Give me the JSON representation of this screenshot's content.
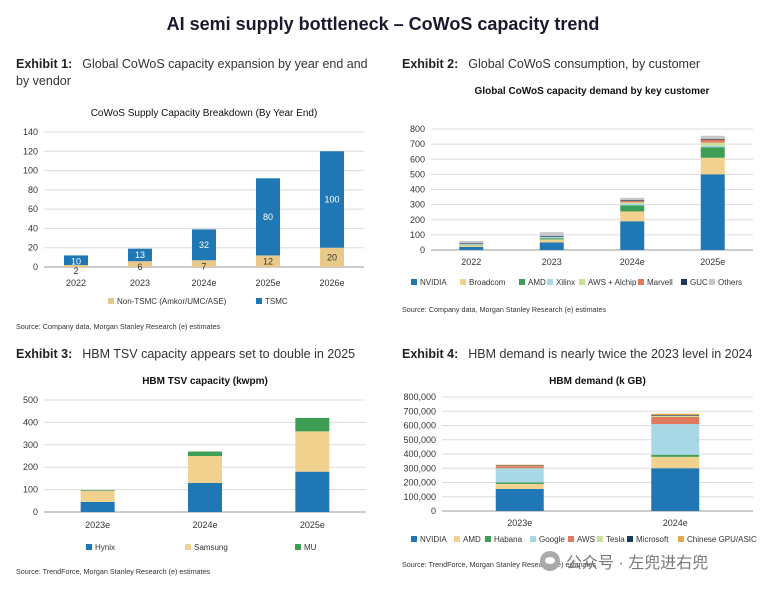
{
  "page": {
    "title": "AI semi supply bottleneck – CoWoS capacity trend"
  },
  "exhibits": [
    {
      "num": "Exhibit 1:",
      "text": "Global CoWoS capacity expansion by year end and by vendor",
      "source": "Source: Company data, Morgan Stanley Research (e) estimates"
    },
    {
      "num": "Exhibit 2:",
      "text": "Global CoWoS consumption, by customer",
      "source": "Source: Company data, Morgan Stanley Research (e) estimates"
    },
    {
      "num": "Exhibit 3:",
      "text": "HBM TSV capacity appears set to double in 2025",
      "source": "Source: TrendForce, Morgan Stanley Research (e) estimates"
    },
    {
      "num": "Exhibit 4:",
      "text": "HBM demand is nearly twice the 2023 level in 2024",
      "source": "Source: TrendForce, Morgan Stanley Research (e) estimates"
    }
  ],
  "watermark": {
    "text": "公众号 · 左兜进右兜"
  },
  "chart_data": [
    {
      "type": "bar",
      "stacked": true,
      "title": "CoWoS Supply Capacity Breakdown (By Year End)",
      "categories": [
        "2022",
        "2023",
        "2024e",
        "2025e",
        "2026e"
      ],
      "series": [
        {
          "name": "Non-TSMC (Amkor/UMC/ASE)",
          "color": "#e8c98a",
          "values": [
            2,
            6,
            7,
            12,
            20
          ]
        },
        {
          "name": "TSMC",
          "color": "#1f77b4",
          "values": [
            10,
            13,
            32,
            80,
            100
          ]
        }
      ],
      "ylim": [
        0,
        140
      ],
      "yticks": [
        "0",
        "20",
        "40",
        "60",
        "80",
        "100",
        "120",
        "140"
      ],
      "data_labels": true
    },
    {
      "type": "bar",
      "stacked": true,
      "title": "Global CoWoS capacity demand by key customer",
      "categories": [
        "2022",
        "2023",
        "2024e",
        "2025e"
      ],
      "series": [
        {
          "name": "NVIDIA",
          "color": "#1f77b4",
          "values": [
            20,
            50,
            190,
            500
          ]
        },
        {
          "name": "Broadcom",
          "color": "#f0d28e",
          "values": [
            12,
            20,
            65,
            110
          ]
        },
        {
          "name": "AMD",
          "color": "#3e9e55",
          "values": [
            3,
            8,
            40,
            70
          ]
        },
        {
          "name": "Xilinx",
          "color": "#a8d8e6",
          "values": [
            5,
            10,
            10,
            10
          ]
        },
        {
          "name": "AWS + Alchip",
          "color": "#c8df9a",
          "values": [
            0,
            0,
            10,
            20
          ]
        },
        {
          "name": "Marvell",
          "color": "#e07a5f",
          "values": [
            0,
            0,
            10,
            20
          ]
        },
        {
          "name": "GUC",
          "color": "#1b3a5c",
          "values": [
            3,
            5,
            5,
            5
          ]
        },
        {
          "name": "Others",
          "color": "#c7c7c7",
          "values": [
            17,
            25,
            15,
            20
          ]
        }
      ],
      "ylim": [
        0,
        800
      ],
      "yticks": [
        "0",
        "100",
        "200",
        "300",
        "400",
        "500",
        "600",
        "700",
        "800"
      ]
    },
    {
      "type": "bar",
      "stacked": true,
      "title": "HBM TSV capacity (kwpm)",
      "categories": [
        "2023e",
        "2024e",
        "2025e"
      ],
      "series": [
        {
          "name": "Hynix",
          "color": "#1f77b4",
          "values": [
            45,
            130,
            180
          ]
        },
        {
          "name": "Samsung",
          "color": "#f0d28e",
          "values": [
            50,
            120,
            180
          ]
        },
        {
          "name": "MU",
          "color": "#3e9e55",
          "values": [
            3,
            20,
            60
          ]
        }
      ],
      "ylim": [
        0,
        500
      ],
      "yticks": [
        "0",
        "100",
        "200",
        "300",
        "400",
        "500"
      ]
    },
    {
      "type": "bar",
      "stacked": true,
      "title": "HBM demand (k GB)",
      "categories": [
        "2023e",
        "2024e"
      ],
      "series": [
        {
          "name": "NVIDIA",
          "color": "#1f77b4",
          "values": [
            155000,
            300000
          ]
        },
        {
          "name": "AMD",
          "color": "#f0d28e",
          "values": [
            35000,
            80000
          ]
        },
        {
          "name": "Habana",
          "color": "#3e9e55",
          "values": [
            10000,
            15000
          ]
        },
        {
          "name": "Google",
          "color": "#a8d8e6",
          "values": [
            100000,
            215000
          ]
        },
        {
          "name": "AWS",
          "color": "#e07a5f",
          "values": [
            15000,
            50000
          ]
        },
        {
          "name": "Tesla",
          "color": "#c8df9a",
          "values": [
            3000,
            8000
          ]
        },
        {
          "name": "Microsoft",
          "color": "#1b3a5c",
          "values": [
            2000,
            5000
          ]
        },
        {
          "name": "Chinese GPU/ASIC",
          "color": "#e6a64c",
          "values": [
            5000,
            10000
          ]
        }
      ],
      "ylim": [
        0,
        800000
      ],
      "yticks": [
        "0",
        "100,000",
        "200,000",
        "300,000",
        "400,000",
        "500,000",
        "600,000",
        "700,000",
        "800,000"
      ]
    }
  ]
}
